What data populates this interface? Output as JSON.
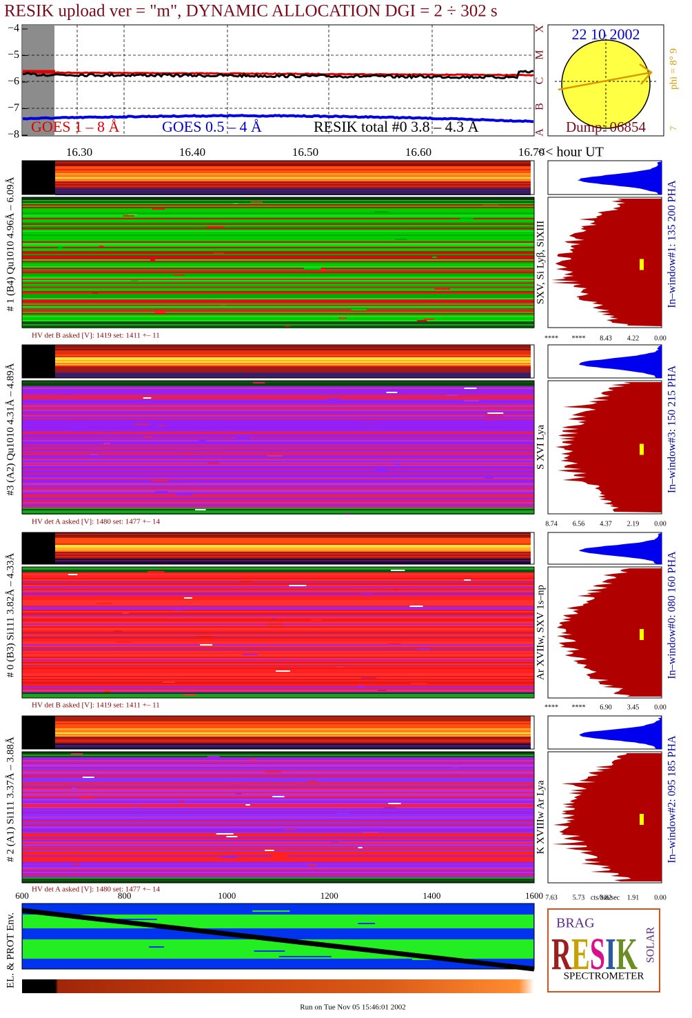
{
  "title": "RESIK upload ver = \"m\", DYNAMIC ALLOCATION  DGI =   2 ÷ 302 s",
  "goes": {
    "yticks": [
      "−4",
      "−5",
      "−6",
      "−7",
      "−8"
    ],
    "class_letters": [
      "X",
      "M",
      "C",
      "B",
      "A"
    ],
    "legend": [
      "GOES 1 – 8 Å",
      "GOES 0.5 – 4 Å",
      "RESIK total #0  3.8 – 4.3 Å"
    ]
  },
  "sun": {
    "date": "22 10 2002",
    "phi": "phi =  8°   9",
    "seven": "7",
    "dump": "Dump: 06854"
  },
  "time_axis": {
    "ticks": [
      "16.30",
      "16.40",
      "16.50",
      "16.60",
      "16.70"
    ],
    "unit": "<< hour UT"
  },
  "detectors": [
    {
      "left_label": "# 1 (B4) Qu1010 4.96Å – 6.09Å",
      "line_label": "SXV, Si Lyβ, SiXIII",
      "window_label": "In–window#1:  135 200 PHA",
      "hv_label": "HV det B asked [V]:  1419 set:  1411 +–   11",
      "hist_ticks": [
        "****",
        "****",
        "8.43",
        "4.22",
        "0.00"
      ]
    },
    {
      "left_label": "#3 (A2) Qu1010  4.31Å – 4.89Å",
      "line_label": "S XVI Lya",
      "window_label": "In–window#3:  150 215 PHA",
      "hv_label": "HV det A asked [V]:  1480 set:  1477 +–   14",
      "hist_ticks": [
        "8.74",
        "6.56",
        "4.37",
        "2.19",
        "0.00"
      ]
    },
    {
      "left_label": "# 0 (B3) Si111  3.82Å – 4.33Å",
      "line_label": "Ar XVIIw,  SXV 1s–np",
      "window_label": "In–window#0:  080 160 PHA",
      "hv_label": "HV det B asked [V]:  1419 set:  1411 +–   11",
      "hist_ticks": [
        "****",
        "****",
        "6.90",
        "3.45",
        "0.00"
      ]
    },
    {
      "left_label": "# 2 (A1) Si111  3.37Å – 3.88Å",
      "line_label": "K XVIIIw  Ar Lya",
      "window_label": "In–window#2:  095 185 PHA",
      "hv_label": "HV det A asked [V]:  1480 set:  1477 +–   14",
      "hist_ticks": [
        "7.63",
        "5.73",
        "3.82",
        "1.91",
        "0.00"
      ]
    }
  ],
  "hist_unit": "cts/bin/sec",
  "position_axis": {
    "ticks": [
      "600",
      "800",
      "1000",
      "1200",
      "1400",
      "1600"
    ]
  },
  "env_label": "EL. & PROT Env.",
  "logo": {
    "top": "BRAG",
    "main": "RESIK",
    "side": "SOLAR",
    "bottom": "SPECTROMETER"
  },
  "footer": "Run on Tue Nov 05 15:46:01 2002"
}
